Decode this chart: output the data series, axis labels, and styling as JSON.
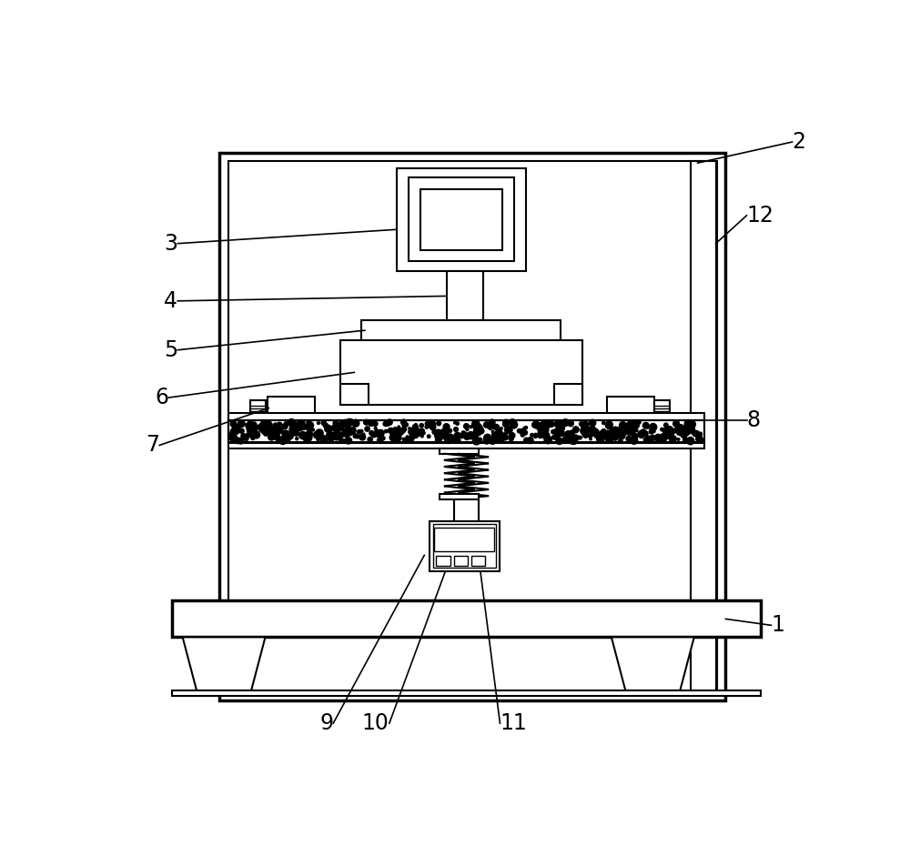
{
  "bg_color": "#ffffff",
  "line_color": "#000000",
  "lw": 1.5,
  "lw_thick": 2.5,
  "lw_thin": 1.0,
  "fig_width": 10.0,
  "fig_height": 9.41,
  "label_fontsize": 17
}
